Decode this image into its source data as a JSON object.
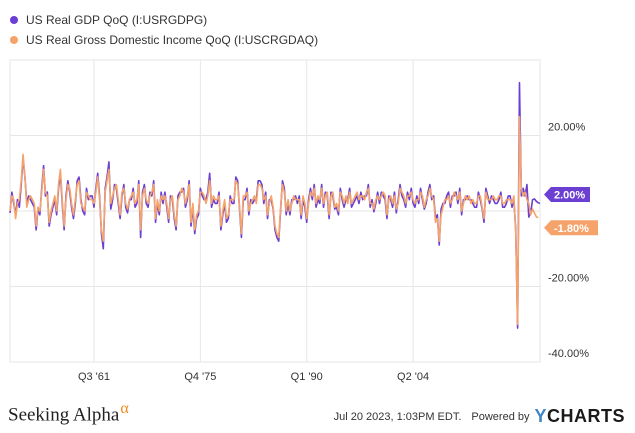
{
  "chart_data": {
    "type": "line",
    "series": [
      {
        "name": "US Real GDP QoQ (I:USRGDPG)",
        "color": "#6a3fd2",
        "end_label": "2.00%",
        "values": [
          -0.5,
          5,
          2,
          -1,
          3,
          1,
          7,
          14,
          9,
          2,
          4,
          3,
          2,
          1,
          -5,
          0.5,
          -1,
          6,
          12,
          4,
          5,
          -4,
          -1,
          1,
          3,
          -1,
          6,
          10,
          2,
          -5,
          4,
          8,
          5,
          1,
          -2,
          2,
          8,
          9,
          3,
          0,
          -1,
          6,
          3,
          4,
          4,
          1,
          6,
          10,
          4,
          -6,
          -10,
          6,
          9,
          13,
          0.5,
          3,
          7,
          6,
          2,
          -2,
          4,
          7,
          1,
          -0.5,
          3,
          3,
          6,
          1,
          2,
          8,
          -7,
          5,
          7,
          2,
          1,
          5,
          4,
          8,
          -3,
          2,
          -1,
          5,
          2,
          5,
          1,
          -3,
          4,
          3,
          -2,
          -5,
          4,
          5,
          5,
          6,
          1,
          3,
          8,
          -4,
          1,
          -6,
          -2,
          -1,
          6,
          4,
          3,
          3,
          5,
          10,
          1,
          3,
          2,
          2,
          5,
          -5,
          -1,
          2,
          -3,
          -2,
          4,
          2,
          2,
          9,
          8,
          0.5,
          -7,
          3,
          3,
          6,
          -1,
          3,
          2,
          3,
          3,
          8,
          8,
          7,
          2,
          5,
          -2,
          3,
          3,
          0.5,
          -5,
          -7,
          -8,
          0.2,
          8,
          6,
          -1,
          2,
          -1,
          3,
          3,
          4,
          2,
          4,
          -2,
          3,
          1,
          -3,
          3,
          6,
          3,
          7,
          1,
          3,
          2,
          7,
          1,
          5,
          4,
          -2,
          5,
          4,
          0.5,
          1,
          -1,
          6,
          3,
          1,
          3,
          3,
          6,
          1,
          2,
          3,
          4,
          2,
          5,
          3,
          4,
          4,
          7,
          1,
          3,
          -0.2,
          2,
          5,
          2,
          5,
          4,
          3,
          -2,
          4,
          3,
          1,
          5,
          -0.5,
          3,
          7,
          4,
          3,
          1,
          5,
          3,
          6,
          2,
          1,
          4,
          2,
          6,
          3,
          0.5,
          2,
          5,
          7,
          3,
          4,
          -2,
          -1,
          -9,
          0.5,
          2,
          2,
          4,
          5,
          1,
          4,
          4,
          5,
          2,
          6,
          -1,
          3,
          3,
          4,
          3,
          3,
          2,
          1,
          1,
          5,
          3,
          0.5,
          -3,
          6,
          4,
          2,
          4,
          3,
          2,
          2,
          3,
          5,
          1,
          1,
          2,
          4,
          4,
          1,
          3,
          -5,
          -31,
          34,
          4,
          6,
          4,
          7,
          -1.6,
          -0.6,
          3,
          3.2,
          2.6,
          2.2,
          2
        ],
        "label_y": 2.0
      },
      {
        "name": "US Real Gross Domestic Income QoQ (I:USCRGDAQ)",
        "color": "#f5a36b",
        "end_label": "-1.80%",
        "values": [
          0,
          4,
          3,
          -2,
          2,
          3,
          8,
          15,
          9,
          1,
          3,
          4,
          3,
          2,
          -4,
          1,
          0,
          5,
          11,
          5,
          4,
          -3,
          0,
          2,
          4,
          0,
          7,
          11,
          3,
          -4,
          3,
          7,
          6,
          2,
          -1,
          3,
          7,
          8,
          2,
          1,
          0,
          5,
          4,
          3,
          3,
          2,
          5,
          9,
          3,
          -5,
          -8,
          5,
          8,
          11,
          2,
          4,
          6,
          7,
          3,
          -1,
          5,
          6,
          2,
          0.5,
          3,
          4,
          5,
          2,
          3,
          7,
          -5,
          4,
          6,
          3,
          2,
          4,
          5,
          7,
          -2,
          3,
          0,
          4,
          3,
          4,
          2,
          -2,
          3,
          4,
          -1,
          -4,
          3,
          4,
          6,
          5,
          2,
          4,
          7,
          -3,
          2,
          -5,
          -1,
          0,
          5,
          5,
          4,
          2,
          4,
          8,
          2,
          4,
          3,
          3,
          4,
          -4,
          0,
          3,
          -2,
          -1,
          3,
          3,
          3,
          8,
          7,
          1,
          -6,
          4,
          4,
          5,
          0,
          2,
          3,
          4,
          2,
          7,
          7,
          6,
          3,
          4,
          -1,
          2,
          4,
          1,
          -4,
          -6,
          -7,
          1,
          7,
          5,
          0,
          3,
          0,
          2,
          4,
          3,
          3,
          3,
          -1,
          4,
          2,
          -2,
          2,
          5,
          4,
          6,
          2,
          4,
          3,
          6,
          2,
          4,
          5,
          -1,
          4,
          5,
          1,
          2,
          0,
          5,
          4,
          2,
          4,
          2,
          5,
          2,
          3,
          4,
          5,
          3,
          4,
          4,
          3,
          5,
          6,
          2,
          2,
          0.5,
          3,
          4,
          3,
          4,
          5,
          4,
          -1,
          3,
          4,
          2,
          4,
          0.5,
          2,
          6,
          5,
          4,
          2,
          4,
          4,
          5,
          3,
          2,
          3,
          3,
          5,
          4,
          1,
          3,
          4,
          6,
          4,
          3,
          -3,
          -2,
          -8,
          -1,
          1,
          3,
          3,
          4,
          2,
          3,
          5,
          4,
          3,
          5,
          0,
          2,
          4,
          3,
          4,
          2,
          3,
          2,
          2,
          4,
          4,
          1,
          -2,
          5,
          3,
          3,
          3,
          4,
          3,
          3,
          4,
          4,
          2,
          2,
          3,
          3,
          3,
          2,
          4,
          -6,
          -30,
          25,
          6,
          4,
          5,
          3,
          2,
          -1,
          0.5,
          -0.5,
          -1.5,
          -1.8
        ],
        "label_y": -1.8
      }
    ],
    "x_tick_labels": [
      "Q3 '61",
      "Q4 '75",
      "Q1 '90",
      "Q2 '04"
    ],
    "x_tick_index": [
      45,
      102,
      159,
      216
    ],
    "y_tick_labels": [
      "20.00%",
      "-20.00%",
      "-40.00%"
    ],
    "y_tick_values": [
      20,
      -20,
      -40
    ],
    "ylim": [
      -40,
      40
    ],
    "grid": true,
    "legend_position": "top-left"
  },
  "legend": {
    "gdp": "US Real GDP QoQ (I:USRGDPG)",
    "gdi": "US Real Gross Domestic Income QoQ (I:USCRGDAQ)"
  },
  "footer": {
    "brand": "Seeking Alpha",
    "brand_symbol": "α",
    "timestamp": "Jul 20 2023, 1:03PM EDT.",
    "powered_by": "Powered by",
    "logo_y": "Y",
    "logo_rest": "CHARTS"
  },
  "colors": {
    "gdp": "#6a3fd2",
    "gdi": "#f5a36b",
    "grid": "#e6e6e6"
  }
}
